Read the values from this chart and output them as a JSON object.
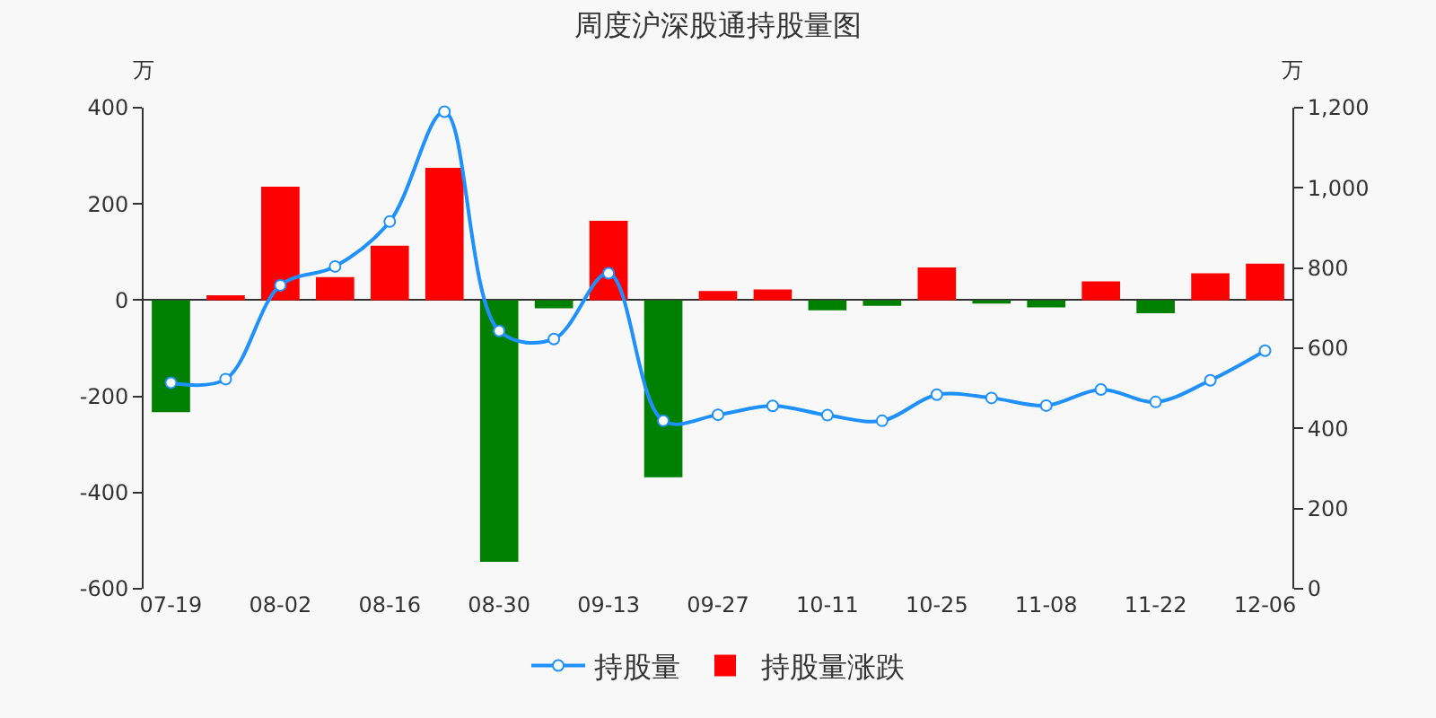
{
  "chart_data": {
    "type": "bar",
    "title": "周度沪深股通持股量图",
    "ylabel": "万",
    "y2label": "万",
    "categories": [
      "07-19",
      null,
      "08-02",
      null,
      "08-16",
      null,
      "08-30",
      null,
      "09-13",
      null,
      "09-27",
      null,
      "10-11",
      null,
      "10-25",
      null,
      "11-08",
      null,
      "11-22",
      null,
      "12-06"
    ],
    "series": [
      {
        "name": "持股量",
        "type": "line",
        "axis": "y2",
        "color": "#1e90ff",
        "values": [
          514,
          523,
          757,
          804,
          916,
          1190,
          643,
          623,
          787,
          419,
          434,
          456,
          433,
          419,
          484,
          476,
          457,
          497,
          466,
          520,
          594
        ]
      },
      {
        "name": "持股量涨跌",
        "color": "#ff0000",
        "colors": [
          "#008000",
          "#ff0000",
          "#ff0000",
          "#ff0000",
          "#ff0000",
          "#ff0000",
          "#008000",
          "#008000",
          "#ff0000",
          "#008000",
          "#ff0000",
          "#ff0000",
          "#008000",
          "#008000",
          "#ff0000",
          "#008000",
          "#008000",
          "#ff0000",
          "#008000",
          "#ff0000",
          "#ff0000"
        ],
        "values": [
          -233,
          10,
          236,
          48,
          113,
          275,
          -544,
          -17,
          165,
          -368,
          19,
          22,
          -21,
          -12,
          68,
          -7,
          -15,
          39,
          -27,
          56,
          76
        ]
      }
    ],
    "ylim": [
      -600,
      400
    ],
    "yticks": [
      -600,
      -400,
      -200,
      0,
      200,
      400
    ],
    "y2lim": [
      0,
      1200
    ],
    "y2ticks": [
      0,
      200,
      400,
      600,
      800,
      {
        "value": 1000,
        "label": "1,000"
      },
      {
        "value": 1200,
        "label": "1,200"
      }
    ],
    "legend": "bottom",
    "marker": "circle",
    "line_style": "solid"
  }
}
